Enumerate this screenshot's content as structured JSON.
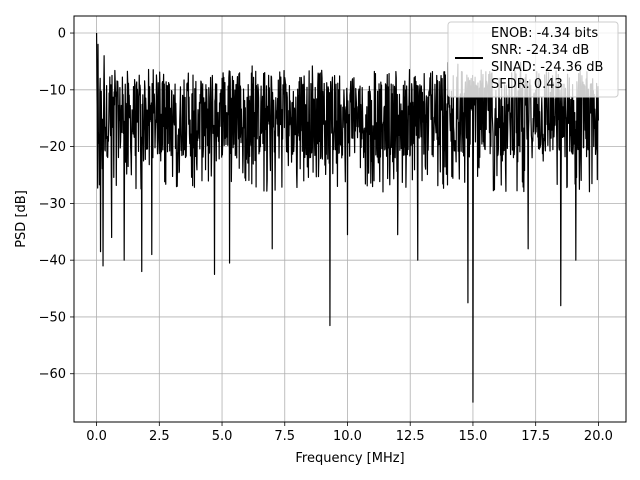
{
  "chart_data": {
    "type": "line",
    "title": "",
    "xlabel": "Frequency [MHz]",
    "ylabel": "PSD [dB]",
    "xlim": [
      -0.9,
      21.1
    ],
    "ylim": [
      -68.5,
      3.0
    ],
    "xticks": [
      0.0,
      2.5,
      5.0,
      7.5,
      10.0,
      12.5,
      15.0,
      17.5,
      20.0
    ],
    "xtick_labels": [
      "0.0",
      "2.5",
      "5.0",
      "7.5",
      "10.0",
      "12.5",
      "15.0",
      "17.5",
      "20.0"
    ],
    "yticks": [
      0,
      -10,
      -20,
      -30,
      -40,
      -50,
      -60
    ],
    "ytick_labels": [
      "0",
      "−10",
      "−20",
      "−30",
      "−40",
      "−50",
      "−60"
    ],
    "grid": true,
    "legend_position": "top-right",
    "legend_lines": [
      "ENOB: -4.34 bits",
      "SNR: -24.34 dB",
      "SINAD: -24.36 dB",
      "SFDR: 0.43"
    ],
    "series": [
      {
        "color": "#000000",
        "x_range": [
          0.0,
          20.0
        ],
        "noise_floor_band": [
          -22.0,
          -8.5
        ],
        "peaks": [
          [
            0.0,
            0.0
          ],
          [
            0.05,
            -2.0
          ],
          [
            0.3,
            -4.0
          ],
          [
            6.2,
            -5.8
          ],
          [
            8.6,
            -5.8
          ],
          [
            14.0,
            -5.2
          ],
          [
            14.4,
            -5.5
          ],
          [
            16.9,
            -5.2
          ]
        ],
        "dips": [
          [
            0.15,
            -38.5
          ],
          [
            0.25,
            -41.0
          ],
          [
            0.6,
            -36.0
          ],
          [
            1.1,
            -40.0
          ],
          [
            1.8,
            -42.0
          ],
          [
            2.2,
            -39.0
          ],
          [
            4.7,
            -42.5
          ],
          [
            5.3,
            -40.5
          ],
          [
            7.0,
            -38.0
          ],
          [
            9.3,
            -51.5
          ],
          [
            10.0,
            -35.5
          ],
          [
            12.0,
            -35.5
          ],
          [
            12.8,
            -40.0
          ],
          [
            14.8,
            -47.5
          ],
          [
            15.0,
            -65.0
          ],
          [
            17.2,
            -38.0
          ],
          [
            18.5,
            -48.0
          ],
          [
            19.1,
            -40.0
          ]
        ]
      }
    ]
  }
}
